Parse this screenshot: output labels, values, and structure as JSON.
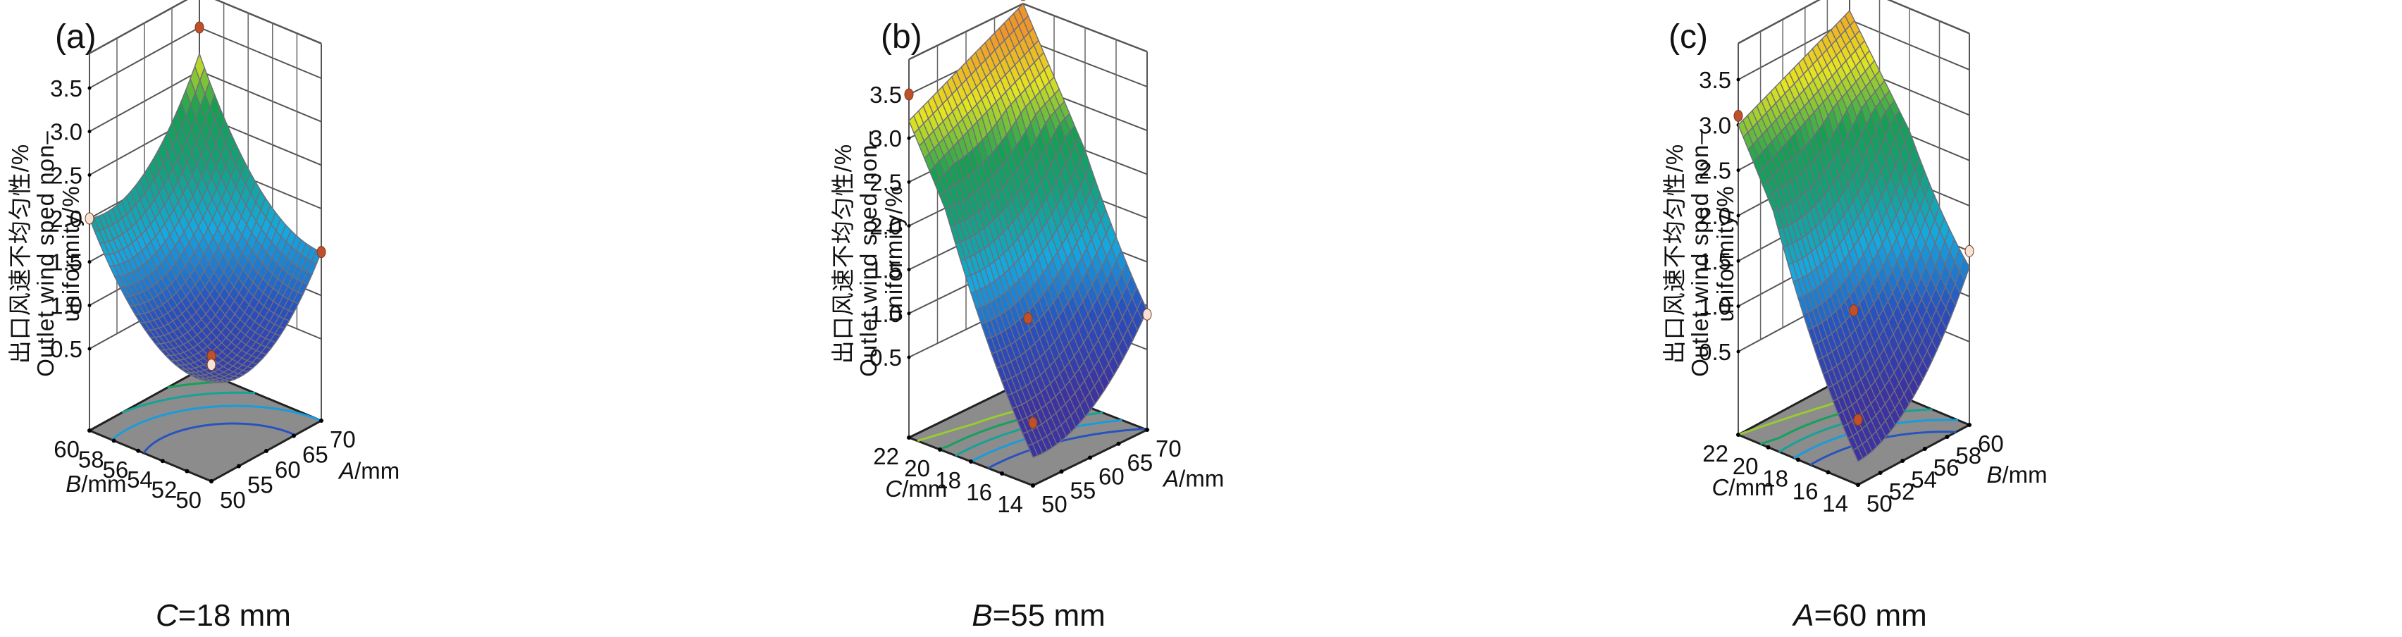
{
  "figure": {
    "y_axis_label_cn": "出口风速不均匀性/%",
    "y_axis_label_en_line1": "Outlet wind sped non–",
    "y_axis_label_en_line2": "uniformity/%"
  },
  "chart_data": [
    {
      "type": "surface",
      "panel_label": "(a)",
      "caption_var": "C",
      "caption_rest": "=18 mm",
      "title": "C=18 mm",
      "zlabel": "出口风速不均匀性/% Outlet wind sped non–uniformity/%",
      "zlim": [
        0.5,
        3.5
      ],
      "zticks": [
        "0.5",
        "1.0",
        "1.5",
        "2.0",
        "2.5",
        "3.0",
        "3.5"
      ],
      "left_axis": {
        "var": "B",
        "label_var": "B",
        "label_unit": "/mm",
        "range": [
          50,
          60
        ],
        "ticks": [
          "50",
          "52",
          "54",
          "56",
          "58",
          "60"
        ]
      },
      "right_axis": {
        "var": "A",
        "label_var": "A",
        "label_unit": "/mm",
        "range": [
          50,
          70
        ],
        "ticks": [
          "50",
          "55",
          "60",
          "65",
          "70"
        ]
      },
      "surface_corners": {
        "A50_B50": 0.7,
        "A50_B60": 2.0,
        "A70_B50": 1.5,
        "A70_B60": 3.2
      },
      "surface_min": {
        "A": 60,
        "B": 55,
        "z": 0.9
      },
      "design_points": [
        {
          "A": 70,
          "B": 60,
          "z": 3.5,
          "status": "above"
        },
        {
          "A": 50,
          "B": 60,
          "z": 2.0,
          "status": "below"
        },
        {
          "A": 70,
          "B": 50,
          "z": 1.5,
          "status": "above"
        },
        {
          "A": 50,
          "B": 50,
          "z": 1.0,
          "status": "above"
        },
        {
          "A": 50,
          "B": 50,
          "z": 0.9,
          "status": "below"
        }
      ]
    },
    {
      "type": "surface",
      "panel_label": "(b)",
      "caption_var": "B",
      "caption_rest": "=55 mm",
      "title": "B=55 mm",
      "zlabel": "出口风速不均匀性/% Outlet wind sped non–uniformity/%",
      "zlim": [
        0.5,
        3.5
      ],
      "zticks": [
        "0.5",
        "1.0",
        "1.5",
        "2.0",
        "2.5",
        "3.0",
        "3.5"
      ],
      "left_axis": {
        "var": "C",
        "label_var": "C",
        "label_unit": "/mm",
        "range": [
          14,
          22
        ],
        "ticks": [
          "14",
          "16",
          "18",
          "20",
          "22"
        ]
      },
      "right_axis": {
        "var": "A",
        "label_var": "A",
        "label_unit": "/mm",
        "range": [
          50,
          70
        ],
        "ticks": [
          "50",
          "55",
          "60",
          "65",
          "70"
        ]
      },
      "surface_corners": {
        "A50_C14": 0.3,
        "A50_C22": 3.2,
        "A70_C14": 1.1,
        "A70_C22": 3.9
      },
      "surface_min": {
        "A": 58,
        "C": 15,
        "z": 0.3
      },
      "design_points": [
        {
          "A": 50,
          "C": 22,
          "z": 3.5,
          "status": "above"
        },
        {
          "A": 70,
          "C": 22,
          "z": 4.0,
          "status": "below"
        },
        {
          "A": 70,
          "C": 14,
          "z": 0.9,
          "status": "below"
        },
        {
          "A": 60,
          "C": 18,
          "z": 0.9,
          "status": "above"
        },
        {
          "A": 50,
          "C": 14,
          "z": 0.3,
          "status": "above"
        }
      ]
    },
    {
      "type": "surface",
      "panel_label": "(c)",
      "caption_var": "A",
      "caption_rest": "=60 mm",
      "title": "A=60 mm",
      "zlabel": "出口风速不均匀性/% Outlet wind sped non–uniformity/%",
      "zlim": [
        0.5,
        3.5
      ],
      "zticks": [
        "0.5",
        "1.0",
        "1.5",
        "2.0",
        "2.5",
        "3.0",
        "3.5"
      ],
      "left_axis": {
        "var": "C",
        "label_var": "C",
        "label_unit": "/mm",
        "range": [
          14,
          22
        ],
        "ticks": [
          "14",
          "16",
          "18",
          "20",
          "22"
        ]
      },
      "right_axis": {
        "var": "B",
        "label_var": "B",
        "label_unit": "/mm",
        "range": [
          50,
          60
        ],
        "ticks": [
          "50",
          "52",
          "54",
          "56",
          "58",
          "60"
        ]
      },
      "surface_corners": {
        "B50_C14": 0.3,
        "B50_C22": 3.0,
        "B60_C14": 1.5,
        "B60_C22": 3.6
      },
      "surface_min": {
        "B": 54,
        "C": 15,
        "z": 0.3
      },
      "design_points": [
        {
          "B": 50,
          "C": 22,
          "z": 3.1,
          "status": "above"
        },
        {
          "B": 60,
          "C": 14,
          "z": 1.5,
          "status": "below"
        },
        {
          "B": 55,
          "C": 18,
          "z": 0.9,
          "status": "above"
        },
        {
          "B": 50,
          "C": 14,
          "z": 0.3,
          "status": "above"
        }
      ]
    }
  ]
}
